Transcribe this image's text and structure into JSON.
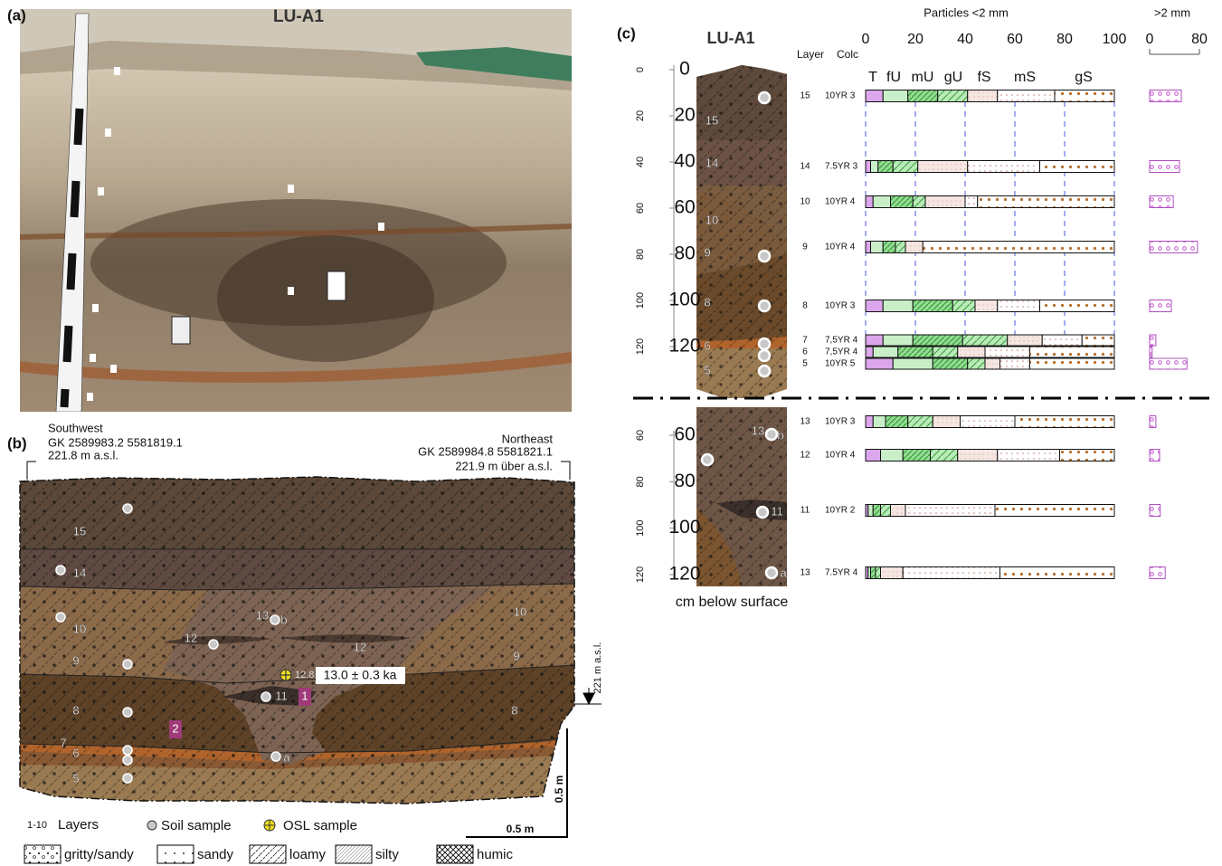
{
  "panel_a": {
    "label": "(a)",
    "title": "LU-A1"
  },
  "panel_b": {
    "label": "(b)",
    "southwest": [
      "Southwest",
      "GK 2589983.2  5581819.1",
      "221.8 m a.s.l."
    ],
    "northeast": [
      "Northeast",
      "GK 2589984.8  5581821.1",
      "221.9 m über a.s.l."
    ],
    "datum": "221 m a.s.l.",
    "osl_sample": "12.8",
    "osl_age": "13.0 ± 0.3 ka",
    "scale": [
      "0.5 m",
      "0.5 m"
    ],
    "layer_labels": [
      "15",
      "14",
      "10",
      "9",
      "8",
      "7",
      "6",
      "5",
      "10",
      "9",
      "8",
      "12",
      "12",
      "13",
      "b",
      "11",
      "a"
    ],
    "profile_markers": [
      "1",
      "2"
    ],
    "legend": {
      "range": "1-10",
      "layers": "Layers",
      "soil": "Soil sample",
      "osl": "OSL sample",
      "textures": [
        "gritty/sandy",
        "sandy",
        "loamy",
        "silty",
        "humic"
      ]
    }
  },
  "panel_c": {
    "label": "(c)",
    "title": "LU-A1",
    "depth_title": "cm below surface",
    "fine_title": "Particles <2 mm",
    "coarse_title": ">2 mm",
    "layer_header": "Layer",
    "color_header": "Colc",
    "fractions": [
      "T",
      "fU",
      "mU",
      "gU",
      "fS",
      "mS",
      "gS"
    ],
    "fine_lim": [
      0,
      100
    ],
    "fine_ticks": [
      0,
      20,
      40,
      60,
      80,
      100
    ],
    "coarse_lim": [
      0,
      80
    ],
    "coarse_ticks": [
      0,
      80
    ],
    "upper": {
      "depth_lim": [
        0,
        120
      ],
      "depth_ticks": [
        0,
        20,
        40,
        60,
        80,
        100,
        120
      ],
      "column_labels": [
        "15",
        "14",
        "10",
        "9",
        "8",
        "6",
        "5"
      ],
      "samples": [
        {
          "layer": "15",
          "color": "10YR 3",
          "fractions": [
            7,
            10,
            12,
            12,
            12,
            23,
            24
          ],
          "gravel": 51
        },
        {
          "layer": "14",
          "color": "7.5YR 3",
          "fractions": [
            2,
            3,
            6,
            10,
            20,
            29,
            30
          ],
          "gravel": 48
        },
        {
          "layer": "10",
          "color": "10YR 4",
          "fractions": [
            3,
            7,
            9,
            5,
            16,
            5,
            55
          ],
          "gravel": 38
        },
        {
          "layer": "9",
          "color": "10YR 4",
          "fractions": [
            2,
            5,
            5,
            4,
            7,
            0,
            77
          ],
          "gravel": 77
        },
        {
          "layer": "8",
          "color": "10YR 3",
          "fractions": [
            7,
            12,
            16,
            9,
            9,
            17,
            30
          ],
          "gravel": 35
        },
        {
          "layer": "7",
          "color": "7,5YR 4",
          "fractions": [
            7,
            12,
            20,
            18,
            14,
            16,
            13
          ],
          "gravel": 10
        },
        {
          "layer": "6",
          "color": "7,5YR 4",
          "fractions": [
            3,
            10,
            14,
            10,
            11,
            18,
            34
          ],
          "gravel": 4
        },
        {
          "layer": "5",
          "color": "10YR 5",
          "fractions": [
            11,
            16,
            14,
            7,
            6,
            12,
            34
          ],
          "gravel": 60
        }
      ]
    },
    "lower": {
      "depth_lim": [
        60,
        120
      ],
      "depth_ticks": [
        60,
        80,
        100,
        120
      ],
      "column_labels": [
        "13",
        "b",
        "11",
        "a"
      ],
      "samples": [
        {
          "layer": "13",
          "color": "10YR 3",
          "fractions": [
            3,
            5,
            9,
            10,
            11,
            22,
            40
          ],
          "gravel": 10
        },
        {
          "layer": "12",
          "color": "10YR 4",
          "fractions": [
            6,
            9,
            11,
            11,
            16,
            25,
            22
          ],
          "gravel": 16
        },
        {
          "layer": "11",
          "color": "10YR 2",
          "fractions": [
            1,
            2,
            3,
            4,
            6,
            36,
            48
          ],
          "gravel": 17
        },
        {
          "layer": "13",
          "color": "7.5YR 4",
          "fractions": [
            1,
            1,
            2,
            2,
            9,
            39,
            46
          ],
          "gravel": 25
        }
      ]
    }
  }
}
